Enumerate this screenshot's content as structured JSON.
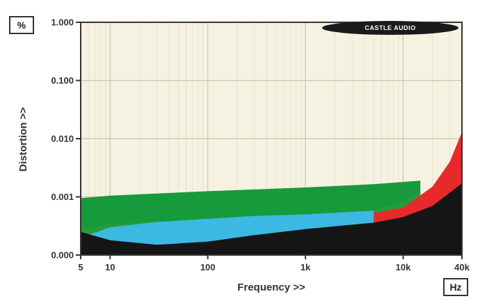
{
  "chart_data": {
    "type": "area",
    "x_scale": "log",
    "y_scale": "log",
    "xlim": [
      5,
      40000
    ],
    "ylim": [
      0.0001,
      1.0
    ],
    "xlabel": "Frequency >>",
    "ylabel": "Distortion >>",
    "x_unit": "Hz",
    "y_unit": "%",
    "x_ticks": [
      {
        "value": 5,
        "label": "5"
      },
      {
        "value": 10,
        "label": "10"
      },
      {
        "value": 100,
        "label": "100"
      },
      {
        "value": 1000,
        "label": "1k"
      },
      {
        "value": 10000,
        "label": "10k"
      },
      {
        "value": 40000,
        "label": "40k"
      }
    ],
    "y_ticks": [
      {
        "value": 0.0001,
        "label": "0.000"
      },
      {
        "value": 0.001,
        "label": "0.001"
      },
      {
        "value": 0.01,
        "label": "0.010"
      },
      {
        "value": 0.1,
        "label": "0.100"
      },
      {
        "value": 1.0,
        "label": "1.000"
      }
    ],
    "grid": true,
    "logo": "CASTLE AUDIO",
    "series": [
      {
        "color": "#179a3b",
        "x": [
          5,
          10,
          100,
          1000,
          5000,
          15000
        ],
        "y": [
          0.00095,
          0.00105,
          0.00125,
          0.00145,
          0.00165,
          0.0019
        ]
      },
      {
        "color": "#2a9a3a",
        "x": [
          5,
          10,
          30,
          100,
          1000,
          5000,
          10000,
          15000
        ],
        "y": [
          0.00028,
          0.00034,
          0.00038,
          0.0004,
          0.00047,
          0.00058,
          0.0008,
          0.0012
        ]
      },
      {
        "color": "#e8292a",
        "x": [
          5,
          100,
          1000,
          10000,
          20000,
          30000,
          40000
        ],
        "y": [
          0.00015,
          0.00018,
          0.00033,
          0.00065,
          0.0015,
          0.004,
          0.013
        ]
      },
      {
        "color": "#3bb9e3",
        "x": [
          5,
          10,
          30,
          100,
          300,
          1000,
          5000
        ],
        "y": [
          0.0002,
          0.0003,
          0.00037,
          0.00042,
          0.00047,
          0.0005,
          0.00058
        ]
      },
      {
        "color": "#151515",
        "x": [
          5,
          10,
          30,
          100,
          300,
          1000,
          5000,
          10000,
          20000,
          40000
        ],
        "y": [
          0.00025,
          0.00018,
          0.00015,
          0.00017,
          0.00022,
          0.00028,
          0.00036,
          0.00045,
          0.0007,
          0.0017
        ]
      }
    ]
  }
}
